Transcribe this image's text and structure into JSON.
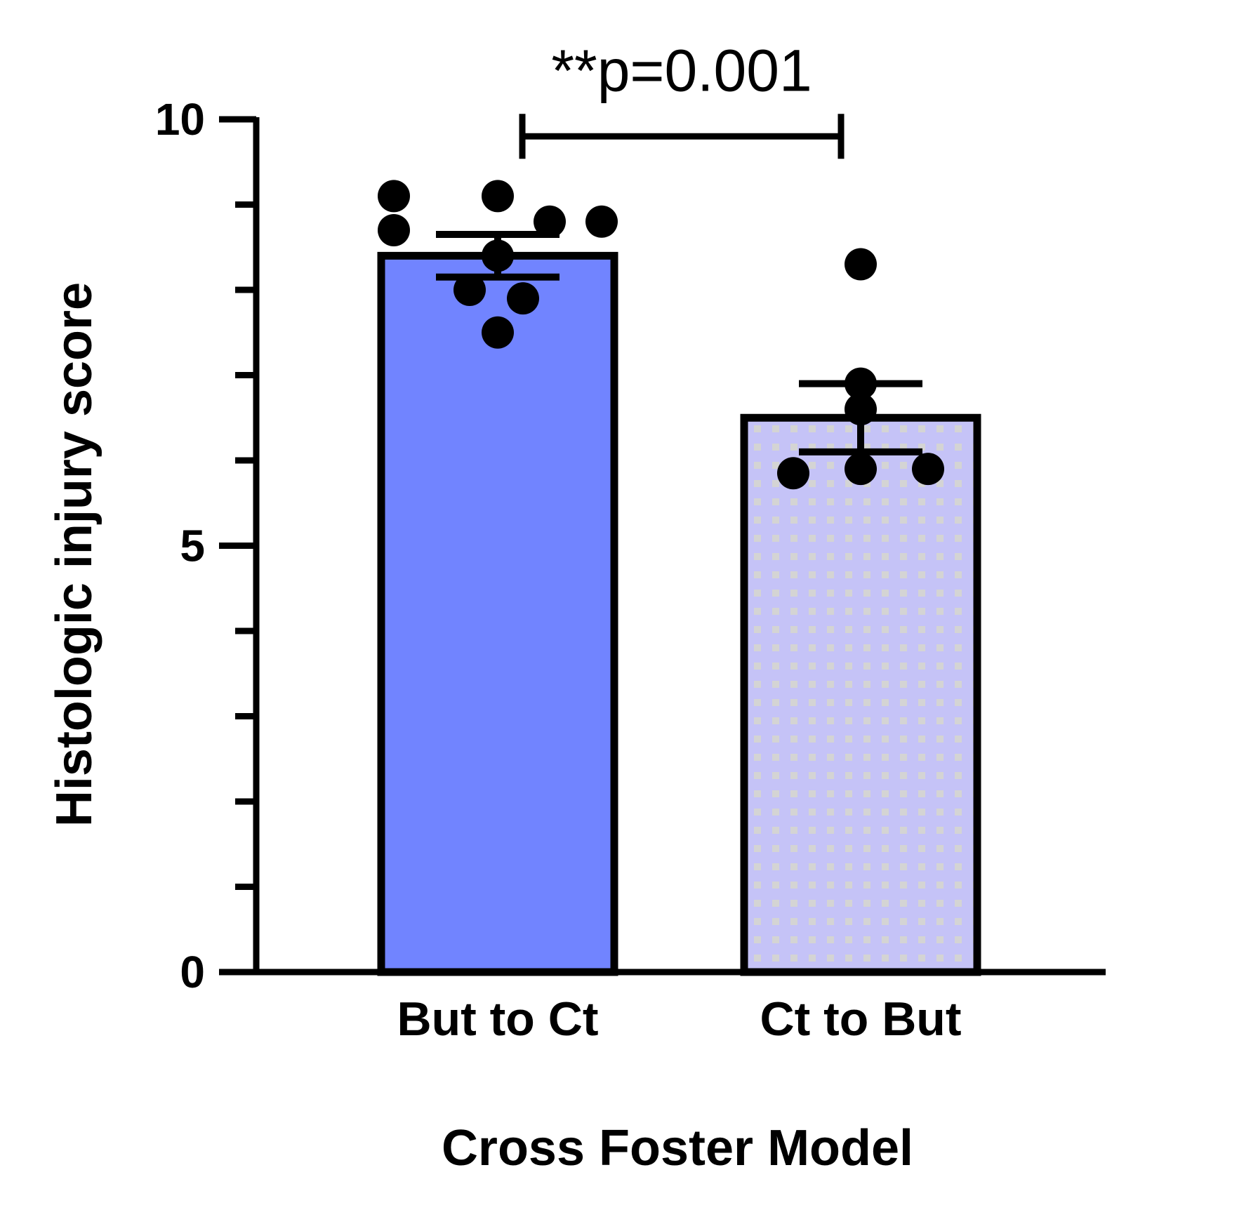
{
  "chart_data": {
    "type": "bar",
    "title": "",
    "xlabel": "Cross Foster Model",
    "ylabel": "Histologic injury score",
    "ylim": [
      0,
      10
    ],
    "yticks_major": [
      0,
      5,
      10
    ],
    "yticks_minor": [
      1,
      2,
      3,
      4,
      6,
      7,
      8,
      9
    ],
    "categories": [
      "But to Ct",
      "Ct to But"
    ],
    "values": [
      8.4,
      6.5
    ],
    "sem": [
      0.25,
      0.4
    ],
    "points": [
      [
        9.1,
        8.7,
        9.1,
        8.4,
        8.8,
        8.8,
        8.0,
        7.9,
        7.5
      ],
      [
        8.3,
        6.9,
        6.6,
        5.85,
        5.9,
        5.9
      ]
    ],
    "colors": [
      "#7184ff",
      "#c5c3f7"
    ],
    "patterns": [
      "solid",
      "dotted"
    ],
    "annotations": [
      {
        "text": "**p=0.001",
        "between": [
          0,
          1
        ],
        "y": 9.8
      }
    ],
    "grid": false,
    "legend": "none"
  }
}
